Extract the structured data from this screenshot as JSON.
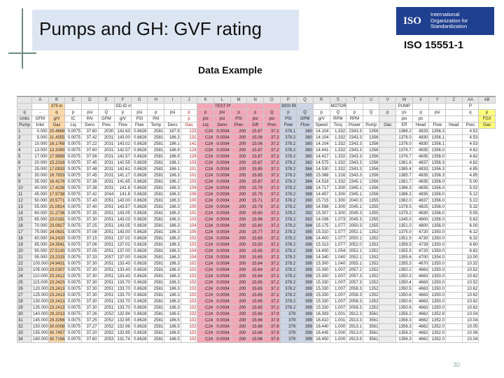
{
  "title": "Pumps and GH: GVF rating",
  "standard": "ISO 15551-1",
  "iso_logo": {
    "word": "ISO",
    "lines": [
      "International",
      "Organization for",
      "Standardization"
    ],
    "color": "#1f3f8f"
  },
  "subtitle": "Data Example",
  "page_number": "30",
  "sheet": {
    "column_letters": [
      "A",
      "B",
      "C",
      "D",
      "E",
      "F",
      "G",
      "H",
      "I",
      "J",
      "K",
      "L",
      "M",
      "N",
      "O",
      "P",
      "Q",
      "R",
      "S",
      "T",
      "U",
      "V",
      "W",
      "X",
      "Y",
      "Z",
      "AA",
      "AB",
      "AC"
    ],
    "group_row": [
      "",
      "",
      "375 in",
      "",
      "",
      "",
      "DD.ID in",
      "",
      "",
      "",
      "",
      "",
      "TEST PUMP",
      "",
      "",
      "",
      "3000 RPM",
      "",
      "",
      "MOTOR",
      "",
      "",
      "",
      "PUMP",
      "",
      "",
      "",
      "P"
    ],
    "symbol_row": [
      "q",
      "-",
      "q",
      "p",
      "psi",
      "Q",
      "p",
      "psi",
      "p",
      "psi",
      "p",
      "p",
      "psi",
      "p",
      "p",
      "Q",
      "p",
      "Q",
      "p",
      "Q",
      "p",
      "Q",
      "p",
      "ps",
      "q",
      "psi",
      "",
      "q",
      "p"
    ],
    "unit_row": [
      "Units",
      "GFM",
      "g/V",
      "IC",
      "PAI",
      "GPM",
      "g/V",
      "PSI",
      "PAI",
      "",
      "p",
      "psi",
      "psi",
      "PSI",
      "psi",
      "psi",
      "PSI",
      "GPM",
      "g/V",
      "RPM",
      "RPM",
      "",
      "",
      "psi",
      "ps",
      "",
      "",
      "",
      "FGX"
    ],
    "desc_row": [
      "Pump",
      "Inlet",
      "Gas",
      "Liq",
      "Dens",
      "Pres",
      "Flow",
      "Flow",
      "Temp",
      "Dens",
      "Gas",
      "Liq",
      "Dens",
      "Pres",
      "Diff",
      "Pres",
      "Flow",
      "Flow",
      "Speed",
      "Torq",
      "Power",
      "Pump",
      "Gas",
      "Eff",
      "Head",
      "Flow",
      "Head",
      "Pres",
      "Gas"
    ],
    "column_colors": {
      "pump_inlet": "#ffd8a8",
      "test_pump": "#f2a7b7",
      "flow": "#ccd5e5",
      "gas_fraction": "#ffff7a"
    },
    "rows": [
      [
        "1",
        "0.000",
        "20.4689",
        "0.0075",
        "37.60",
        "2030",
        "142.63",
        "0.8628",
        "2581",
        "187.9",
        "123",
        "C24",
        "0.0034",
        "200",
        "15.87",
        "37.2",
        "378.1",
        "380",
        "14.104",
        "1.332",
        "2343.3",
        "1356",
        "",
        "1366.2",
        "4833",
        "1356.3",
        "",
        "4.52"
      ],
      [
        "2",
        "5.000",
        "21.4555",
        "0.0075",
        "37.42",
        "2031",
        "143.00",
        "0.8628",
        "2581",
        "186.3",
        "131",
        "C24",
        "0.0034",
        "200",
        "15.06",
        "37.2",
        "378.2",
        "380",
        "14.104",
        "1.332",
        "2343.3",
        "1356",
        "",
        "1376.0",
        "4830",
        "1356.1",
        "",
        "4.53"
      ],
      [
        "3",
        "10.000",
        "16.1769",
        "0.0075",
        "37.22",
        "2031",
        "143.02",
        "0.8628",
        "2581",
        "186.1",
        "141",
        "C24",
        "0.0034",
        "200",
        "15.06",
        "37.2",
        "378.2",
        "380",
        "14.104",
        "1.332",
        "2343.3",
        "1356",
        "",
        "1376.0",
        "4830",
        "1356.1",
        "",
        "4.53"
      ],
      [
        "4",
        "13.000",
        "13.3390",
        "0.0075",
        "37.60",
        "2031",
        "142.57",
        "0.8628",
        "2581",
        "186.9",
        "129",
        "C24",
        "0.0034",
        "200",
        "15.87",
        "37.2",
        "378.2",
        "380",
        "14.441",
        "1.332",
        "2343.3",
        "1356",
        "",
        "1376.7",
        "4835",
        "1356.0",
        "",
        "4.62"
      ],
      [
        "5",
        "17.000",
        "17.9899",
        "0.0075",
        "37.56",
        "2031",
        "142.57",
        "0.8628",
        "2581",
        "186.9",
        "129",
        "C24",
        "0.0034",
        "200",
        "15.87",
        "37.2",
        "378.2",
        "380",
        "14.417",
        "1.332",
        "2343.3",
        "1356",
        "",
        "1376.7",
        "4835",
        "1356.0",
        "",
        "4.62"
      ],
      [
        "6",
        "20.000",
        "15.2318",
        "0.0075",
        "37.45",
        "2031",
        "142.55",
        "0.8628",
        "2581",
        "186.1",
        "103",
        "C24",
        "0.0034",
        "200",
        "15.87",
        "37.2",
        "378.2",
        "382",
        "14.575",
        "1.332",
        "2343.3",
        "1356",
        "",
        "1381.6",
        "4837",
        "1356.3",
        "",
        "4.82"
      ],
      [
        "7",
        "25.000",
        "17.0933",
        "0.0075",
        "37.48",
        "2031",
        "142.61",
        "0.8628",
        "2581",
        "186.1",
        "101",
        "C24",
        "0.0034",
        "200",
        "15.85",
        "37.2",
        "378.2",
        "384",
        "14.530",
        "1.332",
        "2343.3",
        "1356",
        "",
        "1385.4",
        "4833",
        "1356.3",
        "",
        "4.85"
      ],
      [
        "8",
        "30.000",
        "16.7933",
        "0.0075",
        "37.45",
        "2031",
        "141.17",
        "0.8628",
        "2581",
        "186.3",
        "101",
        "C24",
        "0.0034",
        "200",
        "15.85",
        "37.2",
        "378.2",
        "385",
        "15.068",
        "1.316",
        "2343.3",
        "1356",
        "",
        "1385.7",
        "4835",
        "1356.3",
        "",
        "4.85"
      ],
      [
        "9",
        "35.000",
        "16.4176",
        "0.0075",
        "37.36",
        "2031",
        "141.65",
        "0.8628",
        "2581",
        "186.2",
        "103",
        "C24",
        "0.0034",
        "200",
        "15.87",
        "37.2",
        "378.2",
        "384",
        "14.518",
        "1.332",
        "2345.1",
        "1356",
        "",
        "1381.7",
        "4835",
        "1356.0",
        "",
        "5.00"
      ],
      [
        "10",
        "40.000",
        "17.4236",
        "0.0075",
        "37.38",
        "2031",
        "141.8",
        "0.8628",
        "2581",
        "186.3",
        "104",
        "C24",
        "0.0034",
        "200",
        "15.79",
        "37.2",
        "378.2",
        "388",
        "14.717",
        "1.300",
        "2345.1",
        "1356",
        "",
        "1386.3",
        "4835",
        "1356.0",
        "",
        "5.02"
      ],
      [
        "11",
        "45.000",
        "17.9738",
        "0.0075",
        "37.42",
        "2044",
        "141.8",
        "0.8628",
        "2581",
        "186.3",
        "106",
        "C24",
        "0.0034",
        "200",
        "15.75",
        "37.2",
        "378.2",
        "388",
        "14.457",
        "1.300",
        "2345.1",
        "1356",
        "",
        "1386.3",
        "4835",
        "1356.0",
        "",
        "5.12"
      ],
      [
        "12",
        "50.000",
        "20.5771",
        "0.0075",
        "37.43",
        "2051",
        "143.00",
        "0.8628",
        "2581",
        "186.3",
        "100",
        "C24",
        "0.0034",
        "200",
        "15.71",
        "37.2",
        "378.2",
        "390",
        "15.715",
        "1.300",
        "2040.3",
        "1355",
        "",
        "1382.0",
        "4837",
        "1356.0",
        "",
        "5.22"
      ],
      [
        "13",
        "55.000",
        "21.0814",
        "0.0075",
        "37.40",
        "2051",
        "143.57",
        "0.8628",
        "2581",
        "186.3",
        "100",
        "C24",
        "0.0034",
        "200",
        "15.79",
        "37.2",
        "378.2",
        "390",
        "14.596",
        "1.300",
        "2045.1",
        "1355",
        "",
        "1379.5",
        "4825",
        "1356.0",
        "",
        "5.32"
      ],
      [
        "14",
        "60.000",
        "21.2736",
        "0.0075",
        "37.35",
        "2051",
        "143.05",
        "0.8628",
        "2581",
        "186.3",
        "101",
        "C24",
        "0.0034",
        "200",
        "15.60",
        "37.2",
        "378.2",
        "392",
        "15.307",
        "1.300",
        "2045.3",
        "1355",
        "",
        "1379.2",
        "4830",
        "1356.0",
        "",
        "5.55"
      ],
      [
        "15",
        "65.000",
        "23.0181",
        "0.0075",
        "37.30",
        "2051",
        "143.03",
        "0.8628",
        "2581",
        "186.3",
        "103",
        "C24",
        "0.0034",
        "200",
        "15.66",
        "37.2",
        "378.2",
        "392",
        "14.036",
        "1.073",
        "2045.3",
        "1355",
        "",
        "1345.0",
        "4800",
        "1356.0",
        "",
        "5.82"
      ],
      [
        "16",
        "70.000",
        "23.0827",
        "0.0075",
        "37.25",
        "2051",
        "143.05",
        "0.8628",
        "2581",
        "186.3",
        "104",
        "C24",
        "0.0034",
        "200",
        "15.60",
        "37.2",
        "378.2",
        "394",
        "15.175",
        "1.077",
        "2050.3",
        "1355",
        "",
        "1351.0",
        "4800",
        "1356.0",
        "",
        "6.00"
      ],
      [
        "17",
        "75.000",
        "24.0631",
        "0.0075",
        "37.08",
        "2051",
        "143.00",
        "0.8628",
        "2581",
        "186.3",
        "105",
        "C24",
        "0.0034",
        "200",
        "15.77",
        "37.2",
        "378.2",
        "395",
        "15.310",
        "1.077",
        "2052.1",
        "1352",
        "",
        "1375.0",
        "4720",
        "1350.0",
        "",
        "6.12"
      ],
      [
        "18",
        "80.000",
        "24.2420",
        "0.0075",
        "37.15",
        "2051",
        "137.02",
        "0.8628",
        "2581",
        "186.3",
        "102",
        "C24",
        "0.0034",
        "200",
        "15.69",
        "37.2",
        "378.2",
        "396",
        "14.400",
        "1.077",
        "2050.1",
        "1352",
        "",
        "1351.5",
        "4730",
        "1350.0",
        "",
        "6.32"
      ],
      [
        "19",
        "85.000",
        "24.3541",
        "0.0075",
        "37.06",
        "2051",
        "137.02",
        "0.8628",
        "2581",
        "186.3",
        "102",
        "C24",
        "0.0034",
        "200",
        "15.50",
        "37.2",
        "378.2",
        "398",
        "15.313",
        "1.077",
        "2052.0",
        "1352",
        "",
        "1359.5",
        "4728",
        "1350.0",
        "",
        "6.60"
      ],
      [
        "20",
        "90.000",
        "27.5130",
        "0.0075",
        "37.05",
        "2051",
        "137.00",
        "0.8628",
        "2581",
        "186.3",
        "104",
        "C24",
        "0.0034",
        "200",
        "15.65",
        "37.2",
        "378.2",
        "398",
        "14.400",
        "1.054",
        "2052.1",
        "1352",
        "",
        "1355.5",
        "4720",
        "1350.0",
        "",
        "6.82"
      ],
      [
        "21",
        "95.000",
        "23.2315",
        "0.0075",
        "37.33",
        "2057",
        "137.00",
        "0.8628",
        "2581",
        "186.3",
        "104",
        "C24",
        "0.0034",
        "200",
        "15.65",
        "37.2",
        "378.2",
        "398",
        "14.340",
        "1.040",
        "2052.1",
        "1352",
        "",
        "1355.6",
        "4700",
        "1354.0",
        "",
        "10.00"
      ],
      [
        "22",
        "100.000",
        "24.9431",
        "0.0075",
        "37.30",
        "2051",
        "133.43",
        "0.8628",
        "2581",
        "186.3",
        "102",
        "C24",
        "0.0034",
        "200",
        "15.64",
        "37.2",
        "378.2",
        "399",
        "15.300",
        "1.040",
        "2055.1",
        "1352",
        "",
        "1355.3",
        "4670",
        "1350.0",
        "",
        "10.32"
      ],
      [
        "23",
        "105.000",
        "23.0307",
        "0.0075",
        "37.30",
        "2051",
        "133.43",
        "0.8628",
        "2581",
        "186.3",
        "102",
        "C24",
        "0.0034",
        "200",
        "15.64",
        "37.2",
        "378.2",
        "399",
        "15.300",
        "1.007",
        "2057.2",
        "1352",
        "",
        "1350.2",
        "4663",
        "1350.0",
        "",
        "10.52"
      ],
      [
        "24",
        "110.000",
        "23.2412",
        "0.0075",
        "37.30",
        "2051",
        "133.43",
        "0.8628",
        "2581",
        "186.3",
        "102",
        "C24",
        "0.0034",
        "200",
        "15.64",
        "37.2",
        "378.2",
        "399",
        "15.300",
        "1.007",
        "2057.3",
        "1352",
        "",
        "1350.3",
        "4663",
        "1350.0",
        "",
        "10.62"
      ],
      [
        "25",
        "115.000",
        "23.2423",
        "0.0075",
        "37.30",
        "2051",
        "133.70",
        "0.8628",
        "2581",
        "186.3",
        "102",
        "C24",
        "0.0034",
        "200",
        "15.65",
        "37.2",
        "378.2",
        "399",
        "15.330",
        "1.007",
        "2057.3",
        "1352",
        "",
        "1350.4",
        "4663",
        "1350.0",
        "",
        "10.52"
      ],
      [
        "26",
        "120.000",
        "23.2413",
        "0.0075",
        "37.30",
        "2051",
        "133.70",
        "0.8628",
        "2581",
        "186.3",
        "102",
        "C24",
        "0.0034",
        "200",
        "15.65",
        "37.2",
        "378.2",
        "399",
        "15.330",
        "1.007",
        "2058.3",
        "1352",
        "",
        "1350.5",
        "4663",
        "1350.0",
        "",
        "10.62"
      ],
      [
        "27",
        "125.000",
        "23.2413",
        "0.0075",
        "37.30",
        "2051",
        "133.70",
        "0.8628",
        "2581",
        "186.3",
        "102",
        "C24",
        "0.0034",
        "200",
        "15.65",
        "37.2",
        "378.2",
        "399",
        "15.330",
        "1.007",
        "2058.3",
        "1352",
        "",
        "1350.6",
        "4663",
        "1350.0",
        "",
        "10.62"
      ],
      [
        "28",
        "130.000",
        "23.2413",
        "0.0075",
        "37.30",
        "2051",
        "133.70",
        "0.8628",
        "2581",
        "186.3",
        "102",
        "C24",
        "0.0034",
        "200",
        "15.65",
        "37.2",
        "378.2",
        "399",
        "15.330",
        "1.007",
        "2058.3",
        "1352",
        "",
        "1350.6",
        "4663",
        "1350.0",
        "",
        "10.62"
      ],
      [
        "29",
        "135.000",
        "23.2413",
        "0.0075",
        "37.30",
        "2051",
        "133.70",
        "0.8628",
        "2581",
        "186.3",
        "102",
        "C24",
        "0.0034",
        "200",
        "15.65",
        "37.2",
        "378.2",
        "399",
        "15.330",
        "1.007",
        "2058.3",
        "1352",
        "",
        "1350.6",
        "4663",
        "1350.0",
        "",
        "10.62"
      ],
      [
        "30",
        "140.000",
        "29.2013",
        "0.0075",
        "37.26",
        "2052",
        "132.94",
        "0.8628",
        "2581",
        "186.5",
        "102",
        "C24",
        "0.0034",
        "200",
        "15.66",
        "37.9",
        "379",
        "399",
        "16.393",
        "1.001",
        "2912.3",
        "3561",
        "",
        "1356.2",
        "4662",
        "1352.8",
        "",
        "10.04"
      ],
      [
        "31",
        "145.000",
        "29.3266",
        "0.0075",
        "37.25",
        "2052",
        "132.95",
        "0.8628",
        "2581",
        "186.5",
        "102",
        "C24",
        "0.0034",
        "200",
        "15.66",
        "37.9",
        "379",
        "399",
        "16.410",
        "1.001",
        "2913.3",
        "3561",
        "",
        "1356.3",
        "4662",
        "1352.0",
        "",
        "10.04"
      ],
      [
        "32",
        "150.000",
        "30.0008",
        "0.0075",
        "37.27",
        "2052",
        "132.96",
        "0.8628",
        "2581",
        "186.5",
        "102",
        "C24",
        "0.0034",
        "200",
        "15.66",
        "37.9",
        "379",
        "399",
        "16.440",
        "1.000",
        "2913.1",
        "3561",
        "",
        "1356.3",
        "4662",
        "1352.0",
        "",
        "10.05"
      ],
      [
        "33",
        "155.000",
        "30.7457",
        "0.0075",
        "37.20",
        "2052",
        "132.95",
        "0.8628",
        "2581",
        "186.5",
        "102",
        "C24",
        "0.0034",
        "200",
        "15.66",
        "37.9",
        "379",
        "399",
        "16.445",
        "1.000",
        "2913.0",
        "3561",
        "",
        "1356.3",
        "4662",
        "1352.0",
        "",
        "10.06"
      ],
      [
        "34",
        "160.000",
        "30.7156",
        "0.0075",
        "37.60",
        "2053",
        "131.74",
        "0.8628",
        "2581",
        "186.5",
        "102",
        "C24",
        "0.0034",
        "200",
        "15.66",
        "37.9",
        "379",
        "399",
        "16.450",
        "1.000",
        "2913.9",
        "3561",
        "",
        "1356.3",
        "4662",
        "1352.0",
        "",
        "10.04"
      ]
    ]
  }
}
